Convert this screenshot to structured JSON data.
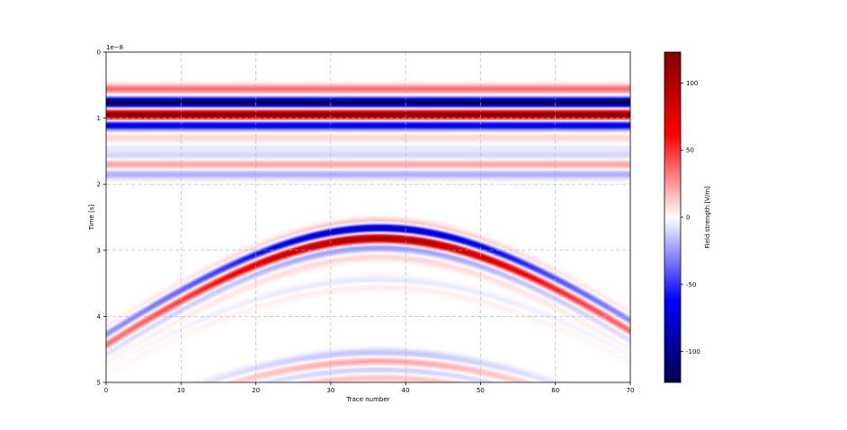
{
  "chart_data": {
    "type": "heatmap",
    "xlabel": "Trace number",
    "ylabel": "Time [s]",
    "y_offset_label": "1e−8",
    "x_ticks": [
      0,
      10,
      20,
      30,
      40,
      50,
      60,
      70
    ],
    "y_ticks": [
      0,
      1,
      2,
      3,
      4,
      5
    ],
    "xlim": [
      0,
      70
    ],
    "ylim": [
      5,
      0
    ],
    "y_scale_factor": 1e-08,
    "grid": true,
    "colormap": "seismic",
    "colorbar": {
      "label": "Field strength [V/m]",
      "ticks": [
        100,
        50,
        0,
        -50,
        -100
      ],
      "vmin": -123,
      "vmax": 123
    },
    "features": {
      "direct_wave": {
        "bands": [
          {
            "time": 0.56,
            "value": 35
          },
          {
            "time": 0.76,
            "value": -123
          },
          {
            "time": 0.95,
            "value": 123
          },
          {
            "time": 1.11,
            "value": -70
          },
          {
            "time": 1.3,
            "value": 10
          },
          {
            "time": 1.45,
            "value": -5
          },
          {
            "time": 1.57,
            "value": -10
          },
          {
            "time": 1.7,
            "value": 22
          },
          {
            "time": 1.85,
            "value": -20
          }
        ]
      },
      "hyperbola": {
        "apex_trace": 36.5,
        "apex_time": 2.54,
        "velocity_factor": 0.09,
        "wavelet": [
          {
            "offset": 0.03,
            "value": 20
          },
          {
            "offset": 0.12,
            "value": -90
          },
          {
            "offset": 0.28,
            "value": 110
          },
          {
            "offset": 0.42,
            "value": -25
          },
          {
            "offset": 0.56,
            "value": 10
          }
        ]
      },
      "second_hyperbola": {
        "apex_trace": 36.5,
        "apex_time": 3.45,
        "velocity_factor": 0.09,
        "wavelet": [
          {
            "offset": 0.0,
            "value": -6
          },
          {
            "offset": 0.1,
            "value": 5
          }
        ]
      },
      "third_hyperbola": {
        "apex_trace": 36.5,
        "apex_time": 4.55,
        "velocity_factor": 0.09,
        "wavelet": [
          {
            "offset": 0.0,
            "value": -15
          },
          {
            "offset": 0.13,
            "value": 22
          },
          {
            "offset": 0.26,
            "value": -12
          },
          {
            "offset": 0.38,
            "value": 15
          }
        ]
      }
    }
  }
}
